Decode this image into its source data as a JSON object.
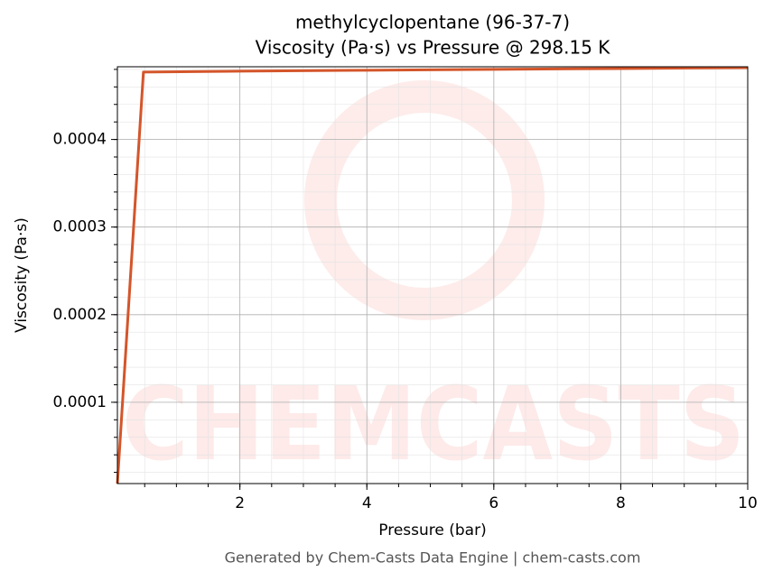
{
  "chart_data": {
    "type": "line",
    "title": "methylcyclopentane (96-37-7)",
    "subtitle": "Viscosity (Pa·s) vs Pressure @ 298.15 K",
    "x_label": "Pressure (bar)",
    "y_label": "Viscosity (Pa·s)",
    "footer": "Generated by Chem-Casts Data Engine | chem-casts.com",
    "watermark": "CHEMCASTS",
    "x": [
      0.07,
      0.48,
      2,
      4,
      6,
      8,
      10
    ],
    "series": [
      {
        "name": "Viscosity",
        "color": "#d4552a",
        "values": [
          7.2e-06,
          0.000477,
          0.000478,
          0.000479,
          0.00048,
          0.000481,
          0.000482
        ]
      }
    ],
    "xlim": [
      0.07,
      10
    ],
    "xticks": [
      2,
      4,
      6,
      8,
      10
    ],
    "ylim": [
      7.2e-06,
      0.000483
    ],
    "yticks": [
      0.0001,
      0.0002,
      0.0003,
      0.0004
    ],
    "grid": true,
    "minor_grid": true
  }
}
